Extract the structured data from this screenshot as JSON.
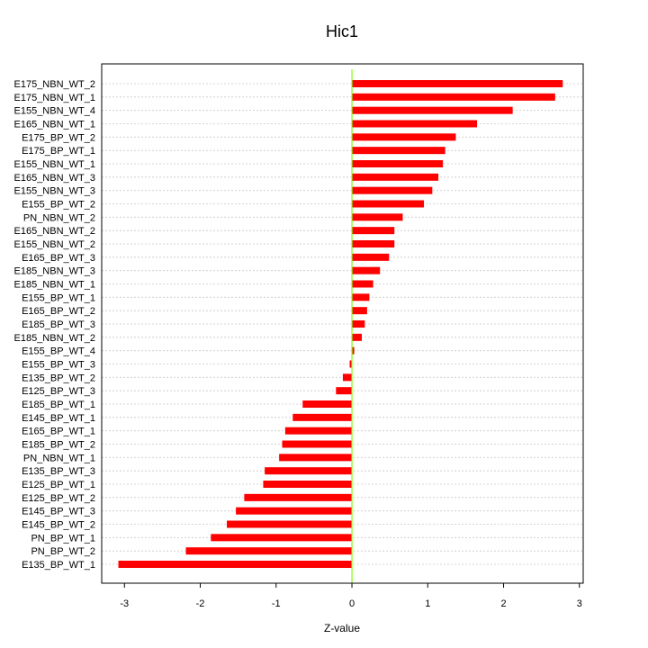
{
  "chart_data": {
    "type": "bar",
    "orientation": "horizontal",
    "title": "Hic1",
    "xlabel": "Z-value",
    "ylabel": "",
    "xlim": [
      -3.3,
      3.05
    ],
    "xticks": [
      -3,
      -2,
      -1,
      0,
      1,
      2,
      3
    ],
    "grid": true,
    "bar_color": "#ff0000",
    "zero_line_color": "#7fff00",
    "categories": [
      "E175_NBN_WT_2",
      "E175_NBN_WT_1",
      "E155_NBN_WT_4",
      "E165_NBN_WT_1",
      "E175_BP_WT_2",
      "E175_BP_WT_1",
      "E155_NBN_WT_1",
      "E165_NBN_WT_3",
      "E155_NBN_WT_3",
      "E155_BP_WT_2",
      "PN_NBN_WT_2",
      "E165_NBN_WT_2",
      "E155_NBN_WT_2",
      "E165_BP_WT_3",
      "E185_NBN_WT_3",
      "E185_NBN_WT_1",
      "E155_BP_WT_1",
      "E165_BP_WT_2",
      "E185_BP_WT_3",
      "E185_NBN_WT_2",
      "E155_BP_WT_4",
      "E155_BP_WT_3",
      "E135_BP_WT_2",
      "E125_BP_WT_3",
      "E185_BP_WT_1",
      "E145_BP_WT_1",
      "E165_BP_WT_1",
      "E185_BP_WT_2",
      "PN_NBN_WT_1",
      "E135_BP_WT_3",
      "E125_BP_WT_1",
      "E125_BP_WT_2",
      "E145_BP_WT_3",
      "E145_BP_WT_2",
      "PN_BP_WT_1",
      "PN_BP_WT_2",
      "E135_BP_WT_1"
    ],
    "values": [
      2.78,
      2.68,
      2.12,
      1.65,
      1.37,
      1.23,
      1.2,
      1.14,
      1.06,
      0.95,
      0.67,
      0.56,
      0.56,
      0.49,
      0.37,
      0.28,
      0.23,
      0.2,
      0.17,
      0.13,
      0.03,
      -0.03,
      -0.12,
      -0.21,
      -0.65,
      -0.78,
      -0.88,
      -0.92,
      -0.96,
      -1.15,
      -1.17,
      -1.42,
      -1.53,
      -1.65,
      -1.86,
      -2.19,
      -3.08
    ]
  }
}
